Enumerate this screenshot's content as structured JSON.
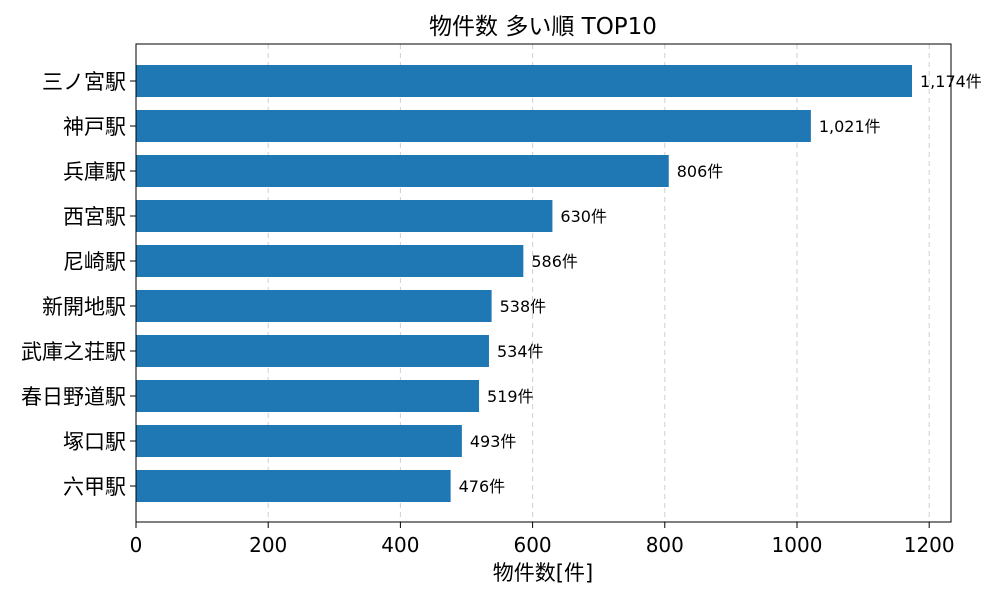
{
  "chart_data": {
    "type": "bar",
    "orientation": "horizontal",
    "title": "物件数 多い順 TOP10",
    "xlabel": "物件数[件]",
    "ylabel": "",
    "categories": [
      "三ノ宮駅",
      "神戸駅",
      "兵庫駅",
      "西宮駅",
      "尼崎駅",
      "新開地駅",
      "武庫之荘駅",
      "春日野道駅",
      "塚口駅",
      "六甲駅"
    ],
    "values": [
      1174,
      1021,
      806,
      630,
      586,
      538,
      534,
      519,
      493,
      476
    ],
    "data_labels": [
      "1,174件",
      "1,021件",
      "806件",
      "630件",
      "586件",
      "538件",
      "534件",
      "519件",
      "493件",
      "476件"
    ],
    "xlim": [
      0,
      1233
    ],
    "xticks": [
      0,
      200,
      400,
      600,
      800,
      1000,
      1200
    ],
    "xtick_labels": [
      "0",
      "200",
      "400",
      "600",
      "800",
      "1000",
      "1200"
    ],
    "grid": "x",
    "bar_color": "#1f77b4"
  }
}
